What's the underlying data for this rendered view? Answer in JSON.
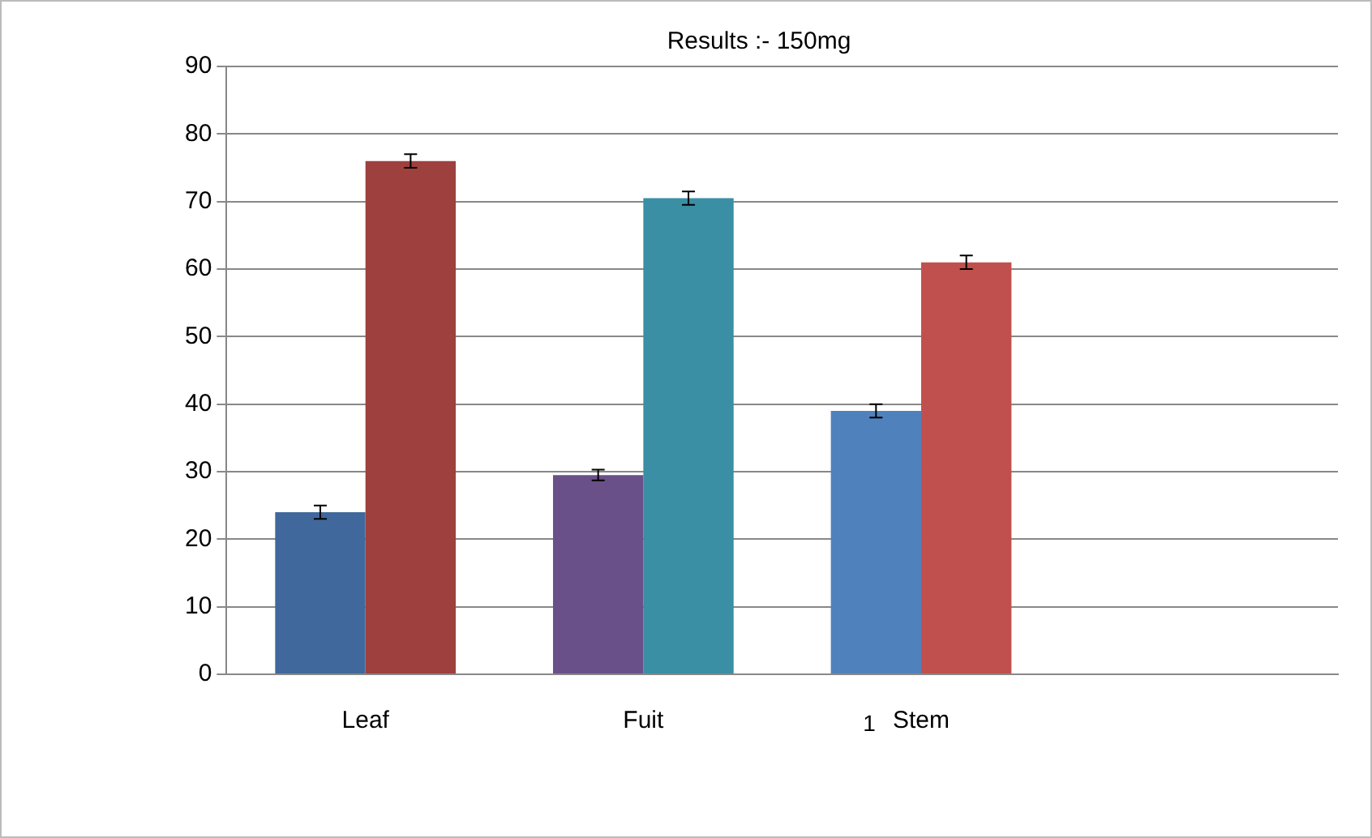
{
  "chart_data": {
    "type": "bar",
    "title": "Results :- 150mg",
    "categories": [
      "Leaf",
      "Fuit",
      "Stem",
      null
    ],
    "series": [
      {
        "colors": [
          "#41689c",
          "#6a5088",
          "#4f81bd",
          null
        ],
        "values": [
          24,
          29.5,
          39,
          null
        ],
        "errors": [
          1,
          0.8,
          1,
          null
        ]
      },
      {
        "colors": [
          "#9e403d",
          "#3a8fa5",
          "#c0504d",
          null
        ],
        "values": [
          76,
          70.5,
          61,
          null
        ],
        "errors": [
          1,
          1,
          1,
          null
        ]
      }
    ],
    "ylim": [
      0,
      90
    ],
    "yticks": [
      0,
      10,
      20,
      30,
      40,
      50,
      60,
      70,
      80,
      90
    ],
    "grid": "y",
    "legend": false,
    "annotations": [
      "1"
    ]
  }
}
